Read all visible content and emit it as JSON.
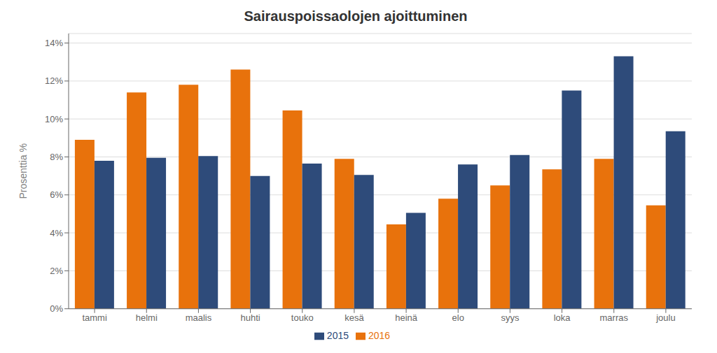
{
  "chart_data": {
    "type": "bar",
    "title": "Sairauspoissaolojen ajoittuminen",
    "categories": [
      "tammi",
      "helmi",
      "maalis",
      "huhti",
      "touko",
      "kesä",
      "heinä",
      "elo",
      "syys",
      "loka",
      "marras",
      "joulu"
    ],
    "series": [
      {
        "name": "2016",
        "color": "#E8720C",
        "values": [
          8.9,
          11.4,
          11.8,
          12.6,
          10.45,
          7.9,
          4.45,
          5.8,
          6.5,
          7.35,
          7.9,
          5.45
        ]
      },
      {
        "name": "2015",
        "color": "#2E4B7A",
        "values": [
          7.8,
          7.95,
          8.05,
          7.0,
          7.65,
          7.05,
          5.05,
          7.6,
          8.1,
          11.5,
          13.3,
          9.35
        ]
      }
    ],
    "ylabel": "Prosenttia %",
    "ylim": [
      0,
      14.5
    ],
    "yticks": [
      {
        "value": 0,
        "label": "0%"
      },
      {
        "value": 2,
        "label": "2%"
      },
      {
        "value": 4,
        "label": "4%"
      },
      {
        "value": 6,
        "label": "6%"
      },
      {
        "value": 8,
        "label": "8%"
      },
      {
        "value": 10,
        "label": "10%"
      },
      {
        "value": 12,
        "label": "12%"
      },
      {
        "value": 14,
        "label": "14%"
      }
    ],
    "grid": true,
    "legend": "bottom"
  }
}
